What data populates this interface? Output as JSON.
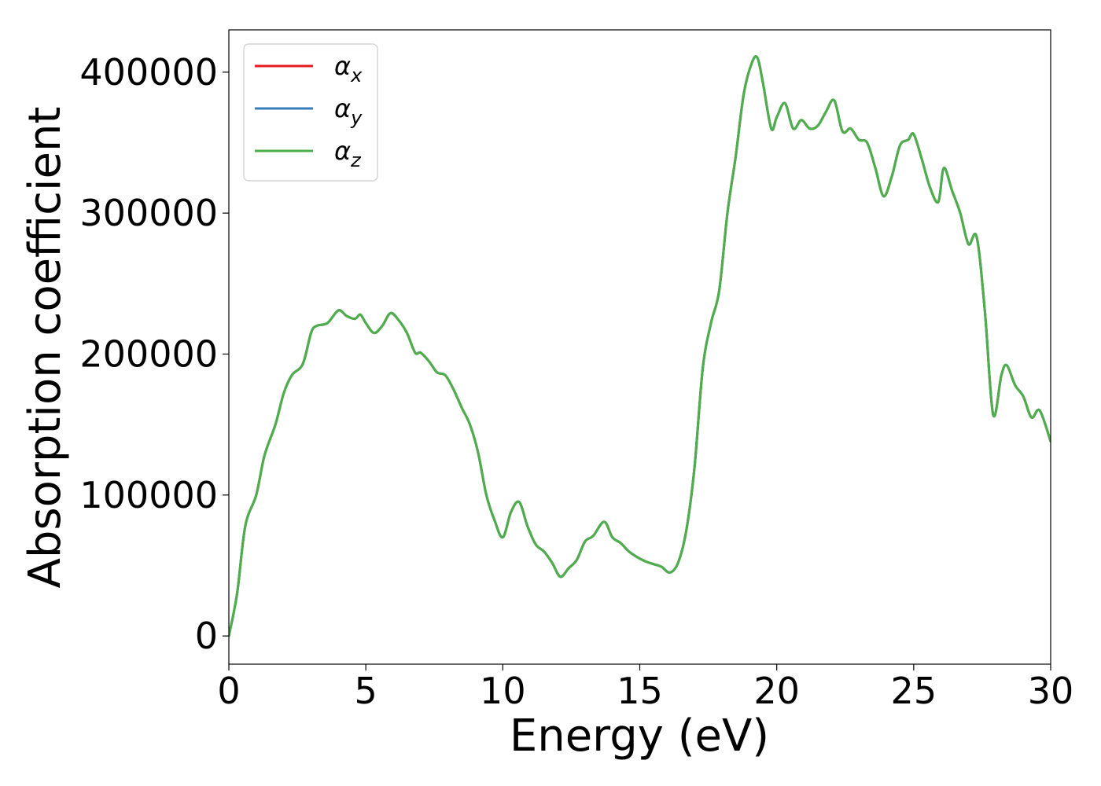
{
  "chart_data": {
    "type": "line",
    "xlabel": "Energy (eV)",
    "ylabel": "Absorption coefficient",
    "xlim": [
      0,
      30
    ],
    "ylim": [
      -20000,
      430000
    ],
    "xticks": [
      "0",
      "5",
      "10",
      "15",
      "20",
      "25",
      "30"
    ],
    "yticks": [
      "0",
      "100000",
      "200000",
      "300000",
      "400000"
    ],
    "grid": false,
    "legend_position": "top-left",
    "x": [
      0,
      0.3,
      0.6,
      1.0,
      1.3,
      1.7,
      2.0,
      2.3,
      2.7,
      3.0,
      3.2,
      3.6,
      4.0,
      4.3,
      4.6,
      4.8,
      5.0,
      5.3,
      5.6,
      5.9,
      6.2,
      6.5,
      6.8,
      7.0,
      7.3,
      7.6,
      7.9,
      8.2,
      8.5,
      8.8,
      9.1,
      9.4,
      9.7,
      10.0,
      10.3,
      10.6,
      10.9,
      11.2,
      11.5,
      11.8,
      12.1,
      12.4,
      12.7,
      13.0,
      13.3,
      13.7,
      14.0,
      14.3,
      14.6,
      14.9,
      15.2,
      15.5,
      15.8,
      16.1,
      16.4,
      16.7,
      17.0,
      17.3,
      17.6,
      17.9,
      18.2,
      18.5,
      18.8,
      19.1,
      19.3,
      19.5,
      19.8,
      20.0,
      20.3,
      20.6,
      20.9,
      21.2,
      21.5,
      21.8,
      22.1,
      22.4,
      22.7,
      23.0,
      23.3,
      23.6,
      23.9,
      24.2,
      24.5,
      24.8,
      25.0,
      25.3,
      25.6,
      25.9,
      26.1,
      26.4,
      26.7,
      27.0,
      27.3,
      27.6,
      27.9,
      28.2,
      28.4,
      28.7,
      29.0,
      29.3,
      29.6,
      30.0
    ],
    "series": [
      {
        "name": "α_x",
        "color": "#e41a1c",
        "values": [
          0,
          30000,
          78000,
          100000,
          128000,
          150000,
          172000,
          185000,
          193000,
          215000,
          220000,
          222000,
          231000,
          227000,
          225000,
          228000,
          222000,
          215000,
          220000,
          229000,
          224000,
          215000,
          201000,
          201000,
          195000,
          187000,
          185000,
          175000,
          162000,
          150000,
          130000,
          100000,
          82000,
          70000,
          88000,
          95000,
          78000,
          65000,
          60000,
          52000,
          42000,
          48000,
          54000,
          67000,
          71000,
          81000,
          70000,
          66000,
          60000,
          56000,
          53000,
          51000,
          49000,
          45000,
          52000,
          75000,
          120000,
          190000,
          222000,
          245000,
          300000,
          340000,
          385000,
          407000,
          410000,
          392000,
          360000,
          368000,
          378000,
          360000,
          366000,
          360000,
          362000,
          372000,
          380000,
          358000,
          360000,
          352000,
          350000,
          332000,
          312000,
          326000,
          348000,
          352000,
          356000,
          338000,
          318000,
          308000,
          332000,
          316000,
          300000,
          278000,
          283000,
          230000,
          157000,
          185000,
          192000,
          178000,
          170000,
          155000,
          160000,
          138000
        ]
      },
      {
        "name": "α_y",
        "color": "#377eb8",
        "values": [
          0,
          30000,
          78000,
          100000,
          128000,
          150000,
          172000,
          185000,
          193000,
          215000,
          220000,
          222000,
          231000,
          227000,
          225000,
          228000,
          222000,
          215000,
          220000,
          229000,
          224000,
          215000,
          201000,
          201000,
          195000,
          187000,
          185000,
          175000,
          162000,
          150000,
          130000,
          100000,
          82000,
          70000,
          88000,
          95000,
          78000,
          65000,
          60000,
          52000,
          42000,
          48000,
          54000,
          67000,
          71000,
          81000,
          70000,
          66000,
          60000,
          56000,
          53000,
          51000,
          49000,
          45000,
          52000,
          75000,
          120000,
          190000,
          222000,
          245000,
          300000,
          340000,
          385000,
          407000,
          410000,
          392000,
          360000,
          368000,
          378000,
          360000,
          366000,
          360000,
          362000,
          372000,
          380000,
          358000,
          360000,
          352000,
          350000,
          332000,
          312000,
          326000,
          348000,
          352000,
          356000,
          338000,
          318000,
          308000,
          332000,
          316000,
          300000,
          278000,
          283000,
          230000,
          157000,
          185000,
          192000,
          178000,
          170000,
          155000,
          160000,
          138000
        ]
      },
      {
        "name": "α_z",
        "color": "#4daf4a",
        "values": [
          0,
          30000,
          78000,
          100000,
          128000,
          150000,
          172000,
          185000,
          193000,
          215000,
          220000,
          222000,
          231000,
          227000,
          225000,
          228000,
          222000,
          215000,
          220000,
          229000,
          224000,
          215000,
          201000,
          201000,
          195000,
          187000,
          185000,
          175000,
          162000,
          150000,
          130000,
          100000,
          82000,
          70000,
          88000,
          95000,
          78000,
          65000,
          60000,
          52000,
          42000,
          48000,
          54000,
          67000,
          71000,
          81000,
          70000,
          66000,
          60000,
          56000,
          53000,
          51000,
          49000,
          45000,
          52000,
          75000,
          120000,
          190000,
          222000,
          245000,
          300000,
          340000,
          385000,
          407000,
          410000,
          392000,
          360000,
          368000,
          378000,
          360000,
          366000,
          360000,
          362000,
          372000,
          380000,
          358000,
          360000,
          352000,
          350000,
          332000,
          312000,
          326000,
          348000,
          352000,
          356000,
          338000,
          318000,
          308000,
          332000,
          316000,
          300000,
          278000,
          283000,
          230000,
          157000,
          185000,
          192000,
          178000,
          170000,
          155000,
          160000,
          138000
        ]
      }
    ]
  }
}
